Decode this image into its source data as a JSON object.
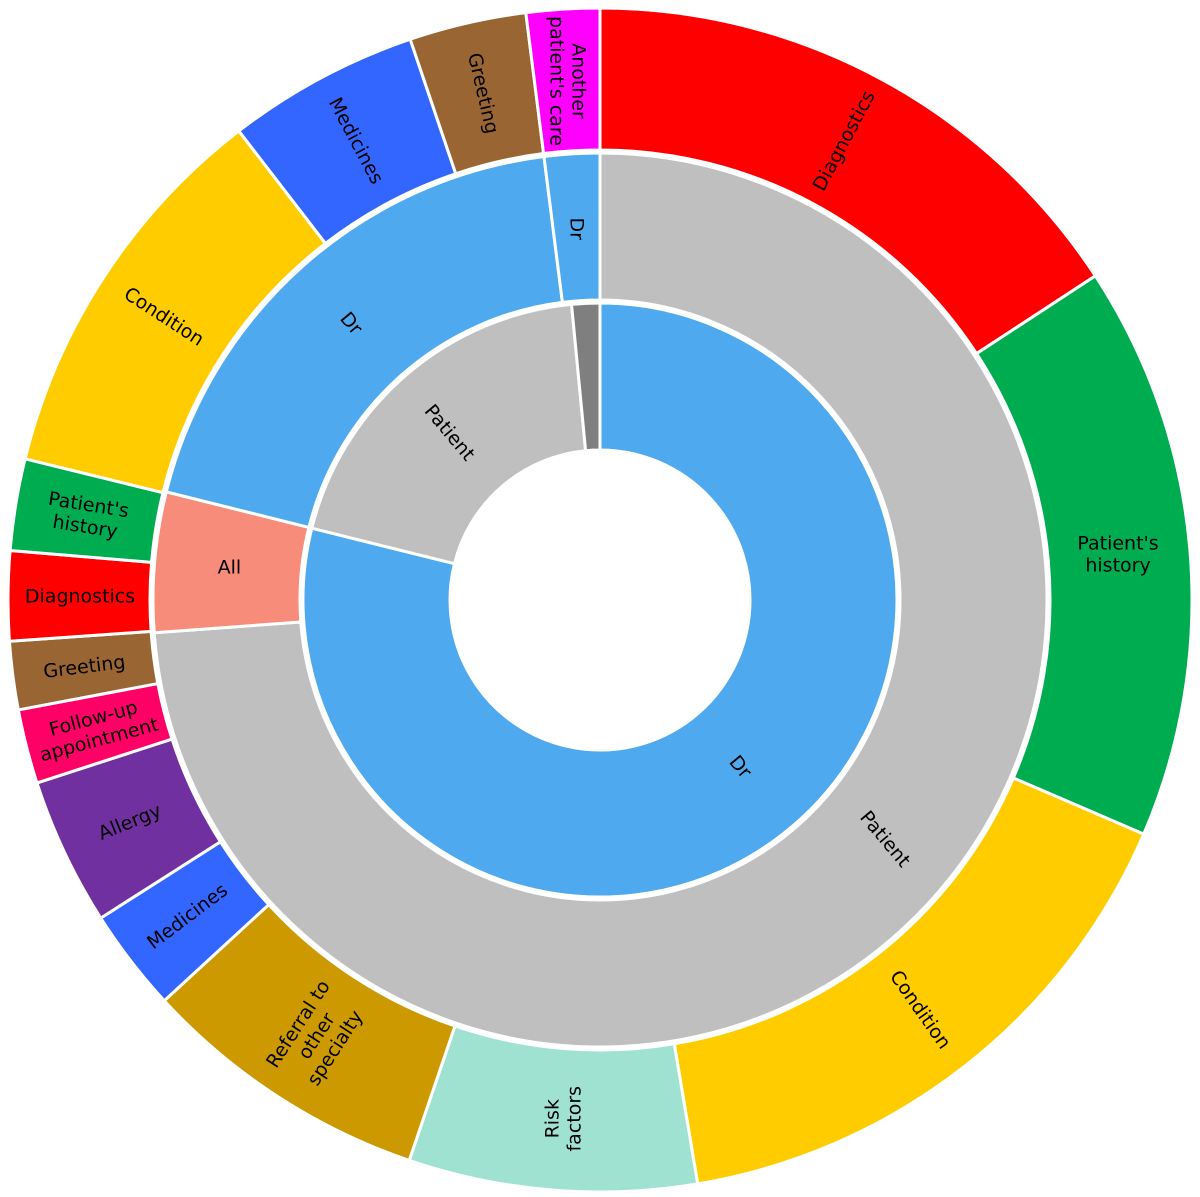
{
  "chart_data": {
    "type": "sunburst",
    "title": "",
    "center": [
      600,
      600
    ],
    "levels": [
      {
        "name": "speaker",
        "r_inner": 150,
        "r_outer": 297,
        "segments": [
          {
            "label": "Dr",
            "start": 0,
            "end": 284.0,
            "color": "#4EA9EE",
            "label_angle": 140,
            "label_r": 218,
            "label_rot": 50
          },
          {
            "label": "Patient",
            "start": 284.0,
            "end": 354.5,
            "color": "#BFBFBF",
            "label_angle": 318,
            "label_r": 225,
            "label_rot": 50
          },
          {
            "label": "",
            "start": 354.5,
            "end": 360,
            "color": "#7F7F7F"
          }
        ]
      },
      {
        "name": "addressee",
        "r_inner": 300,
        "r_outer": 447,
        "segments": [
          {
            "label": "Patient",
            "start": 0,
            "end": 265.8,
            "color": "#BFBFBF",
            "label_angle": 130,
            "label_r": 372,
            "label_rot": 50
          },
          {
            "label": "All",
            "start": 265.8,
            "end": 284.0,
            "color": "#F78C7B",
            "label_angle": 275,
            "label_r": 372,
            "label_rot": 0
          },
          {
            "label": "Dr",
            "start": 284.0,
            "end": 352.8,
            "color": "#4EA9EE",
            "label_angle": 318,
            "label_r": 372,
            "label_rot": 50
          },
          {
            "label": "Dr",
            "start": 352.8,
            "end": 360,
            "color": "#4EA9EE",
            "label_angle": 356.4,
            "label_r": 372,
            "label_rot": 90
          }
        ]
      },
      {
        "name": "topic",
        "r_inner": 450,
        "r_outer": 592,
        "segments": [
          {
            "label": "Diagnostics",
            "start": 0,
            "end": 56.8,
            "color": "#FF0000",
            "label_angle": 28,
            "label_r": 520,
            "label_rot": -62
          },
          {
            "label": "Patient's history",
            "start": 56.8,
            "end": 113.3,
            "color": "#00AC50",
            "label_angle": 85,
            "label_r": 520,
            "label_rot": 0
          },
          {
            "label": "Condition",
            "start": 113.3,
            "end": 170.5,
            "color": "#FFCC00",
            "label_angle": 142,
            "label_r": 520,
            "label_rot": 55
          },
          {
            "label": "Risk factors",
            "start": 170.5,
            "end": 198.8,
            "color": "#A0E2D2",
            "label_angle": 184,
            "label_r": 520,
            "label_rot": -90
          },
          {
            "label": "Referral to other specialty",
            "start": 198.8,
            "end": 227.4,
            "color": "#CC9900",
            "label_angle": 213,
            "label_r": 520,
            "label_rot": -57
          },
          {
            "label": "Medicines",
            "start": 227.4,
            "end": 237.5,
            "color": "#3366FF",
            "label_angle": 232.5,
            "label_r": 520,
            "label_rot": -37
          },
          {
            "label": "Allergy",
            "start": 237.5,
            "end": 252.0,
            "color": "#7030A0",
            "label_angle": 244.7,
            "label_r": 520,
            "label_rot": -22
          },
          {
            "label": "Follow-up appointment",
            "start": 252.0,
            "end": 259.3,
            "color": "#FF0066",
            "label_angle": 255.6,
            "label_r": 520,
            "label_rot": -15
          },
          {
            "label": "Greeting",
            "start": 259.3,
            "end": 266.0,
            "color": "#996633",
            "label_angle": 262.6,
            "label_r": 520,
            "label_rot": -7
          },
          {
            "label": "Diagnostics",
            "start": 266.0,
            "end": 274.8,
            "color": "#FF0000",
            "label_angle": 270.4,
            "label_r": 520,
            "label_rot": 0
          },
          {
            "label": "Patient's history",
            "start": 274.8,
            "end": 283.8,
            "color": "#00AC50",
            "label_angle": 279.3,
            "label_r": 520,
            "label_rot": 9
          },
          {
            "label": "Condition",
            "start": 283.8,
            "end": 322.4,
            "color": "#FFCC00",
            "label_angle": 303,
            "label_r": 520,
            "label_rot": 33
          },
          {
            "label": "Medicines",
            "start": 322.4,
            "end": 341.3,
            "color": "#3366FF",
            "label_angle": 332,
            "label_r": 520,
            "label_rot": 62
          },
          {
            "label": "Greeting",
            "start": 341.3,
            "end": 352.8,
            "color": "#996633",
            "label_angle": 347,
            "label_r": 520,
            "label_rot": 77
          },
          {
            "label": "Another patient's care",
            "start": 352.8,
            "end": 360,
            "color": "#FF00FF",
            "label_angle": 356.4,
            "label_r": 520,
            "label_rot": 90
          }
        ]
      }
    ]
  }
}
